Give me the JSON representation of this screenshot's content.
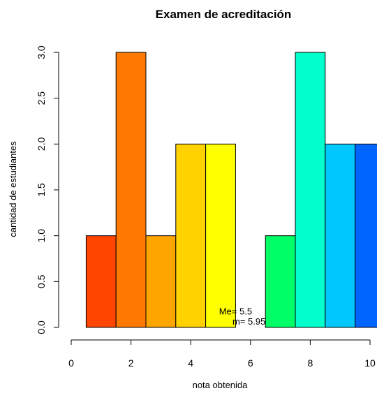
{
  "chart_data": {
    "type": "bar",
    "title": "Examen de acreditación",
    "xlabel": "nota obtenida",
    "ylabel": "cantidad de estudiantes",
    "xlim": [
      0,
      10
    ],
    "ylim": [
      0,
      3
    ],
    "x_ticks": [
      "0",
      "2",
      "4",
      "6",
      "8",
      "10"
    ],
    "y_ticks": [
      "0.0",
      "0.5",
      "1.0",
      "1.5",
      "2.0",
      "2.5",
      "3.0"
    ],
    "grid": false,
    "bars": [
      {
        "x": 1,
        "value": 1,
        "color": "#ff4500"
      },
      {
        "x": 2,
        "value": 3,
        "color": "#ff7800"
      },
      {
        "x": 3,
        "value": 1,
        "color": "#ffa500"
      },
      {
        "x": 4,
        "value": 2,
        "color": "#ffd200"
      },
      {
        "x": 5,
        "value": 2,
        "color": "#ffff00"
      },
      {
        "x": 7,
        "value": 1,
        "color": "#00ff66"
      },
      {
        "x": 8,
        "value": 3,
        "color": "#00ffcc"
      },
      {
        "x": 9,
        "value": 2,
        "color": "#00c8ff"
      },
      {
        "x": 10,
        "value": 2,
        "color": "#0064ff"
      }
    ],
    "annotations": [
      {
        "text": "Me= 5.5",
        "x": 5.5,
        "y": 0.17
      },
      {
        "text": "m= 5.95",
        "x": 5.95,
        "y": 0.06
      }
    ]
  }
}
